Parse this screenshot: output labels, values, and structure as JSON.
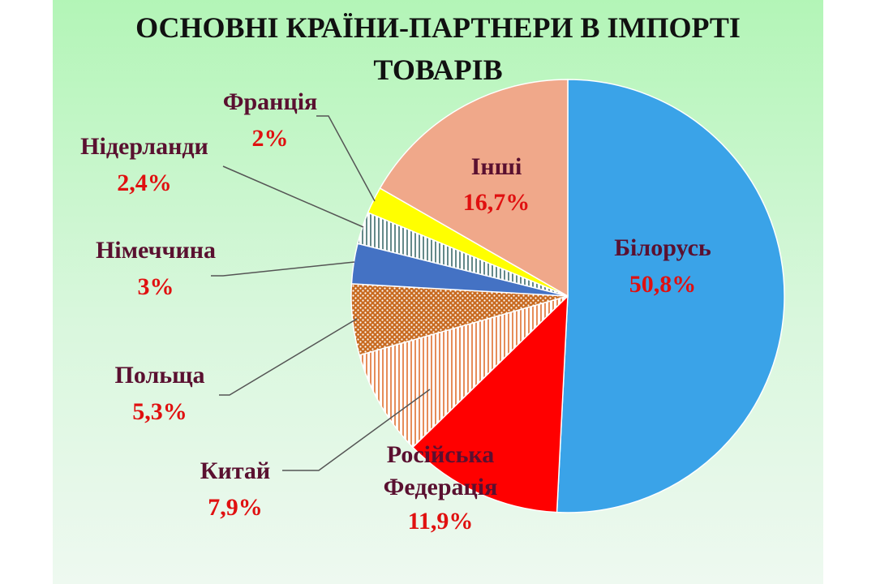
{
  "title_line1": "ОСНОВНІ КРАЇНИ-ПАРТНЕРИ В ІМПОРТІ",
  "title_line2": "ТОВАРІВ",
  "chart_data": {
    "type": "pie",
    "title": "ОСНОВНІ КРАЇНИ-ПАРТНЕРИ В ІМПОРТІ ТОВАРІВ",
    "unit": "%",
    "slices": [
      {
        "label": "Білорусь",
        "value": 50.8,
        "display": "50,8%",
        "color": "#3aa3e8",
        "pattern": "solid"
      },
      {
        "label": "Російська Федерація",
        "label_lines": [
          "Російська",
          "Федерація"
        ],
        "value": 11.9,
        "display": "11,9%",
        "color": "#ff0000",
        "pattern": "solid"
      },
      {
        "label": "Китай",
        "value": 7.9,
        "display": "7,9%",
        "color": "#e07030",
        "pattern": "vertical-lines"
      },
      {
        "label": "Польща",
        "value": 5.3,
        "display": "5,3%",
        "color": "#c86a20",
        "pattern": "dots"
      },
      {
        "label": "Німеччина",
        "value": 3,
        "display": "3%",
        "color": "#4472c4",
        "pattern": "solid"
      },
      {
        "label": "Нідерланди",
        "value": 2.4,
        "display": "2,4%",
        "color": "#3d6b6b",
        "pattern": "vertical-lines"
      },
      {
        "label": "Франція",
        "value": 2,
        "display": "2%",
        "color": "#ffff00",
        "pattern": "solid"
      },
      {
        "label": "Інші",
        "value": 16.7,
        "display": "16,7%",
        "color": "#f0a88a",
        "pattern": "solid"
      }
    ]
  }
}
